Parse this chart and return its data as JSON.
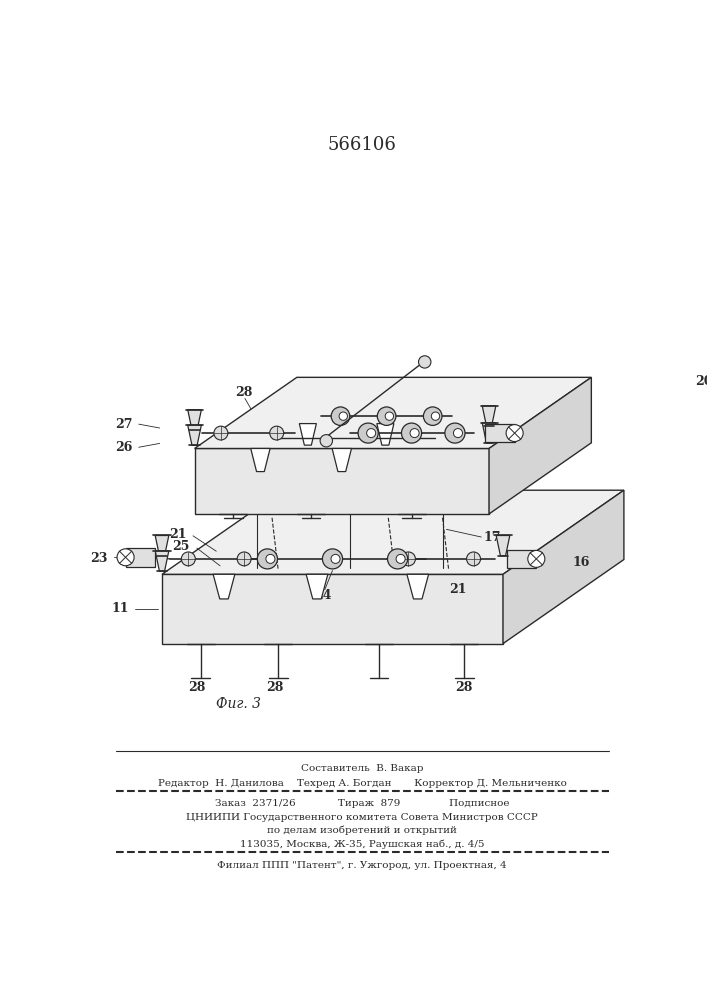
{
  "title": "566106",
  "fig_label": "Фиг. 3",
  "bg_color": "#ffffff",
  "line_color": "#2a2a2a",
  "footer_lines": [
    "Составитель  В. Вакар",
    "Редактор  Н. Данилова    Техред А. Богдан       Корректор Д. Мельниченко",
    "Заказ  2371/26             Тираж  879               Подписное",
    "ЦНИИПИ Государственного комитета Совета Министров СССР",
    "по делам изобретений и открытий",
    "113035, Москва, Ж-35, Раушская наб., д. 4/5",
    "Филиал ППП \"Патент\", г. Ужгород, ул. Проектная, 4"
  ]
}
